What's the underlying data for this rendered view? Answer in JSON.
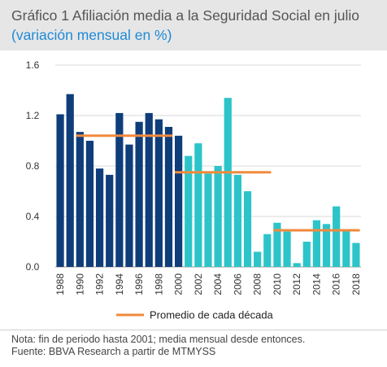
{
  "header": {
    "title": "Gráfico 1 Afiliación media a la Seguridad Social en julio",
    "subtitle": "(variación mensual en %)"
  },
  "notes": {
    "line1": "Nota: fin de periodo hasta 2001; media mensual desde entonces.",
    "line2": "Fuente: BBVA Research a partir de MTMYSS"
  },
  "colors": {
    "bars_period1": "#0e3d7a",
    "bars_period2": "#2cc4c9",
    "average_line": "#f08a3c",
    "axis_text": "#333333",
    "gridline": "#d9d9d9"
  },
  "chart_data": {
    "type": "bar",
    "categories": [
      "1988",
      "1989",
      "1990",
      "1991",
      "1992",
      "1993",
      "1994",
      "1995",
      "1996",
      "1997",
      "1998",
      "1999",
      "2000",
      "2001",
      "2002",
      "2003",
      "2004",
      "2005",
      "2006",
      "2007",
      "2008",
      "2009",
      "2010",
      "2011",
      "2012",
      "2013",
      "2014",
      "2015",
      "2016",
      "2017",
      "2018"
    ],
    "tick_labels": [
      "1988",
      "1990",
      "1992",
      "1994",
      "1996",
      "1998",
      "2000",
      "2002",
      "2004",
      "2006",
      "2008",
      "2010",
      "2012",
      "2014",
      "2016",
      "2018"
    ],
    "values": [
      1.21,
      1.37,
      1.07,
      1.0,
      0.78,
      0.73,
      1.22,
      0.97,
      1.15,
      1.22,
      1.17,
      1.11,
      1.04,
      0.88,
      0.98,
      0.74,
      0.8,
      1.34,
      0.73,
      0.6,
      0.12,
      0.26,
      0.35,
      0.28,
      0.03,
      0.2,
      0.37,
      0.34,
      0.48,
      0.3,
      0.19
    ],
    "bar_color_period": [
      "1",
      "1",
      "1",
      "1",
      "1",
      "1",
      "1",
      "1",
      "1",
      "1",
      "1",
      "1",
      "1",
      "2",
      "2",
      "2",
      "2",
      "2",
      "2",
      "2",
      "2",
      "2",
      "2",
      "2",
      "2",
      "2",
      "2",
      "2",
      "2",
      "2",
      "2"
    ],
    "decade_averages": [
      {
        "from": "1990",
        "to": "1999",
        "value": 1.04
      },
      {
        "from": "2000",
        "to": "2009",
        "value": 0.75
      },
      {
        "from": "2010",
        "to": "2018",
        "value": 0.29
      }
    ],
    "yticks": [
      "0.0",
      "0.4",
      "0.8",
      "1.2",
      "1.6"
    ],
    "ylim": [
      0,
      1.6
    ],
    "legend_label": "Promedio de cada década",
    "legend_position": "bottom",
    "grid": "horizontal"
  }
}
